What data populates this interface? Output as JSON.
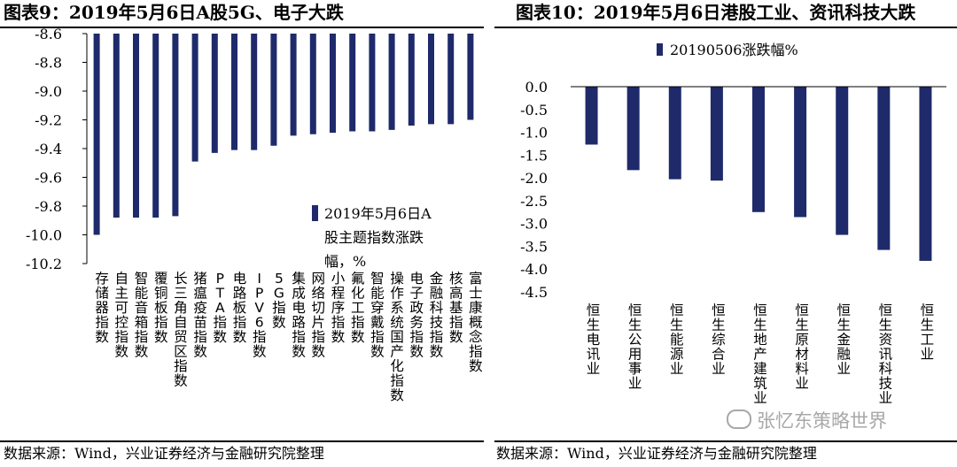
{
  "titles": {
    "left": "图表9：2019年5月6日A股5G、电子大跌",
    "right": "图表10：2019年5月6日港股工业、资讯科技大跌"
  },
  "sources": {
    "left": "数据来源：Wind，兴业证券经济与金融研究院整理",
    "right": "数据来源：Wind，兴业证券经济与金融研究院整理"
  },
  "watermark": "张忆东策略世界",
  "colors": {
    "bar": "#1f2a6b",
    "axis": "#000000"
  },
  "chart_data": [
    {
      "type": "bar",
      "orientation": "vertical",
      "title": "图表9：2019年5月6日A股5G、电子大跌",
      "legend": "2019年5月6日A股主题指数涨跌幅，%",
      "legend_lines": [
        "2019年5月6日A",
        "股主题指数涨跌",
        "幅，%"
      ],
      "ylim": [
        -10.2,
        -8.6
      ],
      "yticks": [
        "-8.6",
        "-8.8",
        "-9.0",
        "-9.2",
        "-9.4",
        "-9.6",
        "-9.8",
        "-10.0",
        "-10.2"
      ],
      "ytick_values": [
        -8.6,
        -8.8,
        -9.0,
        -9.2,
        -9.4,
        -9.6,
        -9.8,
        -10.0,
        -10.2
      ],
      "categories": [
        "存储器指数",
        "自主可控指数",
        "智能音箱指数",
        "覆铜板指数",
        "长三角自贸区指数",
        "猪瘟疫苗指数",
        "PTA指数",
        "电路板指数",
        "IPV6指数",
        "5G指数",
        "集成电路指数",
        "网络切片指数",
        "小程序指数",
        "氟化工指数",
        "智能穿戴指数",
        "操作系统国产化指数",
        "电子政务指数",
        "金融科技指数",
        "核高基指数",
        "富士康概念指数"
      ],
      "values": [
        -10.0,
        -9.88,
        -9.88,
        -9.88,
        -9.87,
        -9.49,
        -9.43,
        -9.41,
        -9.41,
        -9.38,
        -9.31,
        -9.3,
        -9.29,
        -9.28,
        -9.28,
        -9.27,
        -9.24,
        -9.23,
        -9.23,
        -9.2
      ]
    },
    {
      "type": "bar",
      "orientation": "vertical",
      "title": "图表10：2019年5月6日港股工业、资讯科技大跌",
      "legend": "20190506涨跌幅%",
      "ylim": [
        -4.5,
        0.0
      ],
      "yticks": [
        "0.0",
        "-0.5",
        "-1.0",
        "-1.5",
        "-2.0",
        "-2.5",
        "-3.0",
        "-3.5",
        "-4.0",
        "-4.5"
      ],
      "ytick_values": [
        0.0,
        -0.5,
        -1.0,
        -1.5,
        -2.0,
        -2.5,
        -3.0,
        -3.5,
        -4.0,
        -4.5
      ],
      "categories": [
        "恒生电讯业",
        "恒生公用事业",
        "恒生能源业",
        "恒生综合业",
        "恒生地产建筑业",
        "恒生原材料业",
        "恒生金融业",
        "恒生资讯科技业",
        "恒生工业"
      ],
      "values": [
        -1.27,
        -1.83,
        -2.03,
        -2.06,
        -2.75,
        -2.86,
        -3.25,
        -3.58,
        -3.82
      ]
    }
  ]
}
